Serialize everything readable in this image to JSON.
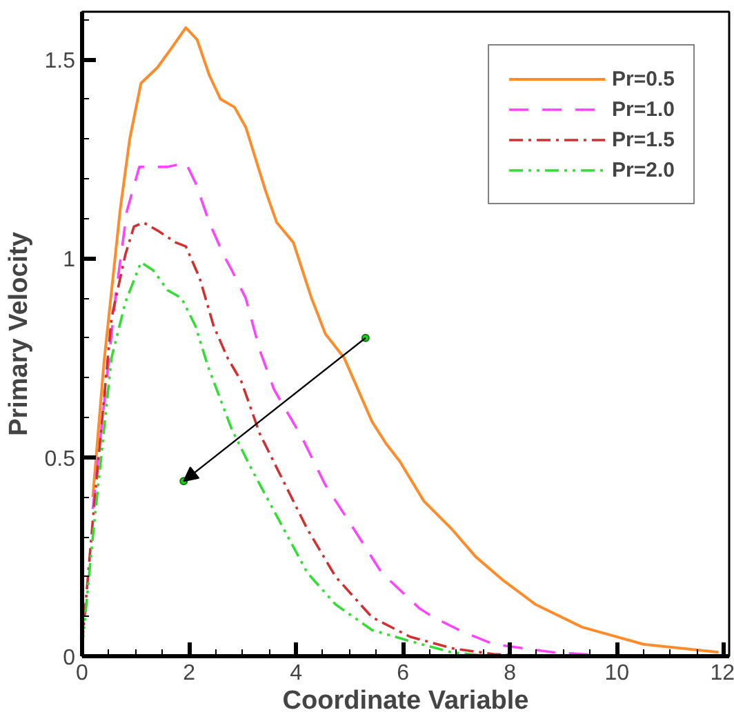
{
  "chart_data": {
    "type": "line",
    "xlabel": "Coordinate Variable",
    "ylabel": "Primary Velocity",
    "xlim": [
      0,
      12.1
    ],
    "ylim": [
      0,
      1.62
    ],
    "xticks": [
      0,
      {
        "value": 0.5,
        "label": null
      },
      {
        "value": 1,
        "label": null
      },
      {
        "value": 1.5,
        "label": null
      },
      2,
      {
        "value": 2.5,
        "label": null
      },
      {
        "value": 3,
        "label": null
      },
      {
        "value": 3.5,
        "label": null
      },
      4,
      {
        "value": 4.5,
        "label": null
      },
      {
        "value": 5,
        "label": null
      },
      {
        "value": 5.5,
        "label": null
      },
      6,
      {
        "value": 6.5,
        "label": null
      },
      {
        "value": 7,
        "label": null
      },
      {
        "value": 7.5,
        "label": null
      },
      8,
      {
        "value": 8.5,
        "label": null
      },
      {
        "value": 9,
        "label": null
      },
      {
        "value": 9.5,
        "label": null
      },
      10,
      {
        "value": 10.5,
        "label": null
      },
      {
        "value": 11,
        "label": null
      },
      {
        "value": 11.5,
        "label": null
      },
      12
    ],
    "yticks": [
      0,
      {
        "value": 0.1,
        "label": null
      },
      {
        "value": 0.2,
        "label": null
      },
      {
        "value": 0.3,
        "label": null
      },
      {
        "value": 0.4,
        "label": null
      },
      0.5,
      {
        "value": 0.6,
        "label": null
      },
      {
        "value": 0.7,
        "label": null
      },
      {
        "value": 0.8,
        "label": null
      },
      {
        "value": 0.9,
        "label": null
      },
      1,
      {
        "value": 1.1,
        "label": null
      },
      {
        "value": 1.2,
        "label": null
      },
      {
        "value": 1.3,
        "label": null
      },
      {
        "value": 1.4,
        "label": null
      },
      1.5,
      {
        "value": 1.6,
        "label": null
      }
    ],
    "grid": false,
    "legend": "top right",
    "marker": "none",
    "series": [
      {
        "name": "Pr=0.5",
        "color": "#ff8c2a",
        "line_style": "solid",
        "x": [
          0.2,
          0.41,
          0.71,
          0.89,
          1.1,
          1.41,
          1.68,
          1.94,
          2.15,
          2.38,
          2.59,
          2.85,
          3.06,
          3.43,
          3.64,
          3.95,
          4.29,
          4.55,
          4.9,
          5.42,
          5.68,
          5.94,
          6.39,
          6.91,
          7.36,
          7.88,
          8.48,
          9.35,
          10.5,
          11.9
        ],
        "values": [
          0.4,
          0.74,
          1.12,
          1.3,
          1.44,
          1.48,
          1.53,
          1.58,
          1.55,
          1.46,
          1.4,
          1.38,
          1.33,
          1.17,
          1.09,
          1.04,
          0.9,
          0.81,
          0.75,
          0.59,
          0.535,
          0.49,
          0.39,
          0.32,
          0.25,
          0.19,
          0.13,
          0.073,
          0.03,
          0.01
        ]
      },
      {
        "name": "Pr=1.0",
        "color": "#ff44ff",
        "line_style": "dashed",
        "x": [
          0.2,
          0.63,
          0.84,
          1.07,
          1.6,
          1.94,
          2.12,
          2.38,
          2.64,
          2.8,
          3.06,
          3.32,
          3.59,
          4.11,
          4.55,
          5.08,
          5.6,
          6.31,
          6.57,
          7.09,
          7.7,
          8.8,
          10.0
        ],
        "values": [
          0.37,
          0.91,
          1.12,
          1.23,
          1.23,
          1.24,
          1.19,
          1.09,
          1.01,
          0.97,
          0.9,
          0.77,
          0.67,
          0.55,
          0.43,
          0.32,
          0.21,
          0.12,
          0.098,
          0.063,
          0.03,
          0.01,
          0
        ]
      },
      {
        "name": "Pr=1.5",
        "color": "#d03030",
        "line_style": "dashdot",
        "x": [
          0,
          0.2,
          0.55,
          0.81,
          0.97,
          1.15,
          1.41,
          1.75,
          1.94,
          2.2,
          2.46,
          2.72,
          2.98,
          3.32,
          3.69,
          4.21,
          4.74,
          5.42,
          6.13,
          6.65,
          6.91,
          7.7,
          8.5
        ],
        "values": [
          0.03,
          0.34,
          0.85,
          1.01,
          1.08,
          1.09,
          1.07,
          1.04,
          1.03,
          0.95,
          0.83,
          0.75,
          0.69,
          0.56,
          0.46,
          0.32,
          0.2,
          0.098,
          0.049,
          0.03,
          0.02,
          0.005,
          0
        ]
      },
      {
        "name": "Pr=2.0",
        "color": "#33dd33",
        "line_style": "dashdotdot",
        "x": [
          0,
          0.2,
          0.55,
          0.81,
          1.1,
          1.33,
          1.6,
          1.86,
          2.12,
          2.35,
          2.8,
          3.17,
          3.69,
          4.21,
          4.74,
          5.42,
          6.13,
          6.9,
          7.6
        ],
        "values": [
          0.02,
          0.3,
          0.75,
          0.89,
          0.99,
          0.97,
          0.92,
          0.9,
          0.83,
          0.73,
          0.57,
          0.47,
          0.34,
          0.21,
          0.13,
          0.066,
          0.038,
          0.01,
          0
        ]
      }
    ]
  }
}
